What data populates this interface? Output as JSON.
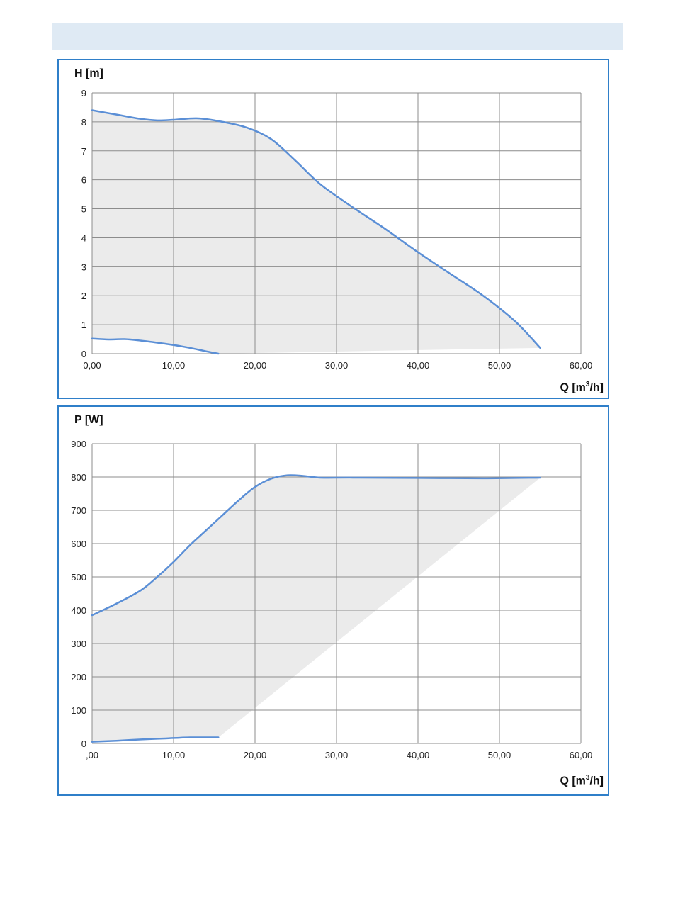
{
  "header": {
    "band_color": "#dfeaf4"
  },
  "colors": {
    "frame": "#2f7fc9",
    "curve": "#5b8fd6",
    "fill": "#ebebeb",
    "grid": "#8c8c8c"
  },
  "chart_data": [
    {
      "type": "area",
      "ylabel": "H [m]",
      "xlabel_main": "Q [m",
      "xlabel_sup": "3",
      "xlabel_end": "/h]",
      "xlim": [
        0,
        60
      ],
      "ylim": [
        0,
        9
      ],
      "grid": true,
      "x_tick_labels": [
        "0,00",
        "10,00",
        "20,00",
        "30,00",
        "40,00",
        "50,00",
        "60,00"
      ],
      "y_tick_labels": [
        "0",
        "1",
        "2",
        "3",
        "4",
        "5",
        "6",
        "7",
        "8",
        "9"
      ],
      "series": [
        {
          "x": [
            0,
            3,
            6,
            8,
            10,
            13,
            16,
            19,
            22,
            25,
            28,
            32,
            36,
            40,
            44,
            48,
            52,
            55
          ],
          "y": [
            8.4,
            8.25,
            8.1,
            8.05,
            8.07,
            8.12,
            8.0,
            7.8,
            7.4,
            6.65,
            5.85,
            5.05,
            4.3,
            3.5,
            2.75,
            2.0,
            1.1,
            0.2
          ]
        },
        {
          "x": [
            0,
            2,
            4,
            6,
            8,
            10,
            12,
            14,
            15.5
          ],
          "y": [
            0.52,
            0.49,
            0.5,
            0.45,
            0.38,
            0.3,
            0.2,
            0.08,
            0.0
          ]
        }
      ],
      "shaded_region_lower": {
        "x": [
          15.5,
          55
        ],
        "y": [
          0.0,
          0.2
        ]
      }
    },
    {
      "type": "area",
      "ylabel": "P [W]",
      "xlabel_main": "Q [m",
      "xlabel_sup": "3",
      "xlabel_end": "/h]",
      "xlim": [
        0,
        60
      ],
      "ylim": [
        0,
        900
      ],
      "grid": true,
      "x_tick_labels": [
        ",00",
        "10,00",
        "20,00",
        "30,00",
        "40,00",
        "50,00",
        "60,00"
      ],
      "y_tick_labels": [
        "0",
        "100",
        "200",
        "300",
        "400",
        "500",
        "600",
        "700",
        "800",
        "900"
      ],
      "series": [
        {
          "x": [
            0,
            3,
            6,
            8,
            10,
            12,
            14,
            16,
            18,
            20,
            22,
            24,
            26,
            28,
            32,
            40,
            48,
            55
          ],
          "y": [
            385,
            420,
            460,
            500,
            545,
            595,
            640,
            685,
            730,
            770,
            795,
            805,
            803,
            798,
            798,
            797,
            796,
            798
          ]
        },
        {
          "x": [
            0,
            3,
            6,
            9,
            12,
            15.5
          ],
          "y": [
            5,
            8,
            12,
            15,
            18,
            18
          ]
        }
      ],
      "shaded_region_lower": {
        "x": [
          15.5,
          55
        ],
        "y": [
          18,
          798
        ]
      }
    }
  ]
}
